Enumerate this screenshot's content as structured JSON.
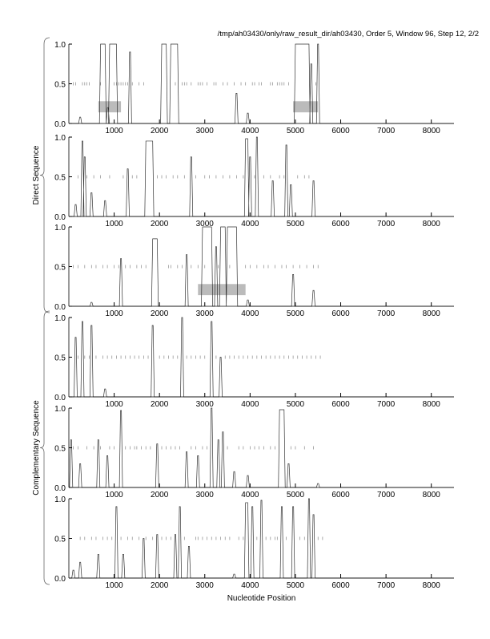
{
  "chart_data": {
    "type": "line",
    "title": "/tmp/ah03430/only/raw_result_dir/ah03430, Order 5, Window 96, Step 12, 2/2",
    "xlabel": "Nucleotide Position",
    "group_labels": [
      "Direct Sequence",
      "Complementary Sequence"
    ],
    "xlim": [
      0,
      8500
    ],
    "ylim": [
      0,
      1
    ],
    "x_ticks": [
      1000,
      2000,
      3000,
      4000,
      5000,
      6000,
      7000,
      8000
    ],
    "y_ticks": [
      "0.0",
      "0.5",
      "1.0"
    ],
    "panels": [
      {
        "name": "direct-frame-1",
        "peaks": [
          [
            250,
            0.08
          ],
          [
            700,
            800,
            1.0
          ],
          [
            860,
            0.2
          ],
          [
            900,
            1050,
            1.0
          ],
          [
            1350,
            0.9
          ],
          [
            2050,
            2150,
            1.0
          ],
          [
            2250,
            2400,
            1.0
          ],
          [
            3700,
            0.38
          ],
          [
            3950,
            0.13
          ],
          [
            5000,
            5300,
            1.0
          ],
          [
            5350,
            0.75
          ],
          [
            5500,
            1.0
          ]
        ],
        "genes": [
          [
            650,
            1150
          ],
          [
            4950,
            5500
          ]
        ],
        "orfs": [
          100,
          150,
          300,
          350,
          400,
          450,
          700,
          1000,
          1050,
          1100,
          1150,
          1200,
          1250,
          1300,
          1400,
          1550,
          1650,
          2350,
          2500,
          2550,
          2600,
          2700,
          2850,
          2900,
          2950,
          3050,
          3200,
          3250,
          3400,
          3500,
          3650,
          3800,
          3900,
          4050,
          4100,
          4200,
          4250,
          4450,
          4500,
          4600,
          4650,
          4700,
          4750,
          4850,
          5450
        ]
      },
      {
        "name": "direct-frame-2",
        "peaks": [
          [
            150,
            0.15
          ],
          [
            300,
            0.95
          ],
          [
            350,
            0.75
          ],
          [
            500,
            0.3
          ],
          [
            800,
            0.2
          ],
          [
            1300,
            0.6
          ],
          [
            1700,
            1850,
            0.95
          ],
          [
            2700,
            0.75
          ],
          [
            3900,
            3950,
            0.98
          ],
          [
            4000,
            0.75
          ],
          [
            4150,
            1.0
          ],
          [
            4500,
            0.45
          ],
          [
            4800,
            0.9
          ],
          [
            4900,
            0.4
          ],
          [
            5400,
            0.45
          ]
        ],
        "genes": [],
        "orfs": [
          200,
          400,
          550,
          700,
          900,
          1200,
          1400,
          1500,
          1950,
          2050,
          2150,
          2300,
          2400,
          2550,
          2800,
          3000,
          3100,
          3250,
          3400,
          3550,
          3700,
          3850,
          4100,
          4300,
          4450,
          4650,
          4750,
          5050,
          5200,
          5300
        ]
      },
      {
        "name": "direct-frame-3",
        "peaks": [
          [
            500,
            0.05
          ],
          [
            1150,
            0.6
          ],
          [
            1850,
            1950,
            0.85
          ],
          [
            2600,
            0.65
          ],
          [
            2950,
            3150,
            1.0
          ],
          [
            3250,
            0.75
          ],
          [
            3350,
            3450,
            1.0
          ],
          [
            3500,
            3700,
            1.0
          ],
          [
            3950,
            0.08
          ],
          [
            4950,
            0.4
          ],
          [
            5400,
            0.2
          ]
        ],
        "genes": [
          [
            2850,
            3900
          ]
        ],
        "orfs": [
          100,
          200,
          350,
          500,
          600,
          750,
          850,
          1000,
          1100,
          1250,
          1350,
          1500,
          1600,
          1700,
          2200,
          2250,
          2400,
          2500,
          2700,
          2850,
          3000,
          3300,
          3550,
          3900,
          4000,
          4150,
          4300,
          4400,
          4550,
          4700,
          4800,
          4950,
          5100,
          5250,
          5400,
          5500
        ]
      },
      {
        "name": "complementary-frame-1",
        "peaks": [
          [
            150,
            0.75
          ],
          [
            300,
            0.95
          ],
          [
            500,
            0.9
          ],
          [
            800,
            0.1
          ],
          [
            1850,
            0.9
          ],
          [
            2500,
            1.0
          ],
          [
            3150,
            0.95
          ],
          [
            3350,
            0.5
          ]
        ],
        "genes": [],
        "orfs": [
          200,
          350,
          450,
          600,
          750,
          850,
          950,
          1050,
          1150,
          1250,
          1350,
          1450,
          1550,
          1650,
          1750,
          2000,
          2100,
          2200,
          2300,
          2400,
          2600,
          2700,
          2800,
          2900,
          3000,
          3250,
          3450,
          3550,
          3650,
          3750,
          3850,
          3950,
          4050,
          4150,
          4250,
          4350,
          4450,
          4550,
          4650,
          4750,
          4850,
          4950,
          5050,
          5150,
          5250,
          5350,
          5450,
          5550
        ]
      },
      {
        "name": "complementary-frame-2",
        "peaks": [
          [
            50,
            0.6
          ],
          [
            250,
            0.3
          ],
          [
            650,
            0.6
          ],
          [
            850,
            0.4
          ],
          [
            1150,
            0.97
          ],
          [
            1950,
            0.55
          ],
          [
            2600,
            0.45
          ],
          [
            2850,
            0.4
          ],
          [
            3150,
            1.0
          ],
          [
            3300,
            0.6
          ],
          [
            3400,
            0.7
          ],
          [
            3650,
            0.2
          ],
          [
            3950,
            0.15
          ],
          [
            4650,
            4750,
            0.98
          ],
          [
            4850,
            0.3
          ],
          [
            5500,
            0.05
          ]
        ],
        "genes": [],
        "orfs": [
          100,
          200,
          400,
          550,
          700,
          900,
          1000,
          1250,
          1350,
          1450,
          1500,
          1600,
          1700,
          1800,
          2050,
          2150,
          2250,
          2350,
          2450,
          2700,
          2800,
          2950,
          3050,
          3500,
          3750,
          3850,
          4000,
          4100,
          4200,
          4300,
          4450,
          4550,
          4900,
          5000,
          5200,
          5400
        ]
      },
      {
        "name": "complementary-frame-3",
        "peaks": [
          [
            100,
            0.1
          ],
          [
            250,
            0.2
          ],
          [
            650,
            0.3
          ],
          [
            1050,
            0.9
          ],
          [
            1200,
            0.3
          ],
          [
            1650,
            0.5
          ],
          [
            1950,
            0.55
          ],
          [
            2350,
            0.55
          ],
          [
            2450,
            0.9
          ],
          [
            2650,
            0.4
          ],
          [
            3650,
            0.05
          ],
          [
            3900,
            3950,
            0.95
          ],
          [
            4050,
            0.9
          ],
          [
            4250,
            0.98
          ],
          [
            4700,
            0.9
          ],
          [
            4950,
            0.9
          ],
          [
            5300,
            1.0
          ],
          [
            5400,
            0.8
          ]
        ],
        "genes": [],
        "orfs": [
          250,
          350,
          500,
          600,
          750,
          850,
          950,
          1150,
          1300,
          1400,
          1550,
          1700,
          1850,
          2050,
          2150,
          2250,
          2550,
          2800,
          2850,
          2950,
          3050,
          3150,
          3250,
          3350,
          3450,
          3550,
          3750,
          3850,
          4150,
          4350,
          4450,
          4550,
          4600,
          4800,
          5100,
          5200,
          5500,
          5600
        ]
      }
    ]
  }
}
